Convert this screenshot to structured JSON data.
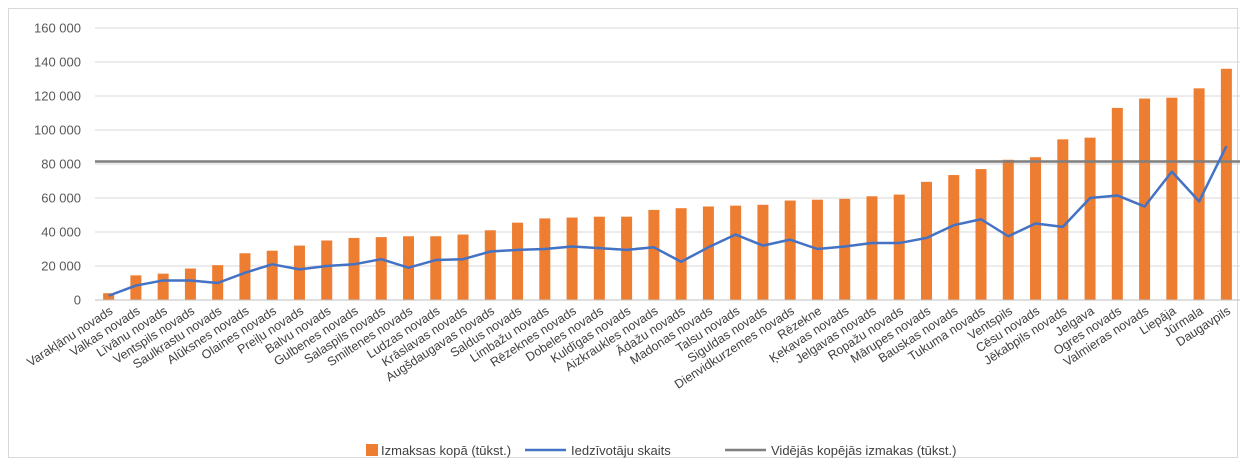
{
  "chart_data": {
    "type": "bar",
    "title": "",
    "xlabel": "",
    "ylabel": "",
    "ylim": [
      0,
      160000
    ],
    "y_ticks": [
      "0",
      "20 000",
      "40 000",
      "60 000",
      "80 000",
      "100 000",
      "120 000",
      "140 000",
      "160 000"
    ],
    "grid": true,
    "legend_position": "bottom",
    "categories": [
      "Varakļānu novads",
      "Valkas novads",
      "Līvānu novads",
      "Ventspils novads",
      "Saulkrastu novads",
      "Alūksnes novads",
      "Olaines novads",
      "Preiļu novads",
      "Balvu novads",
      "Gulbenes novads",
      "Salaspils novads",
      "Smiltenes novads",
      "Ludzas novads",
      "Krāslavas novads",
      "Augšdaugavas novads",
      "Saldus novads",
      "Limbažu novads",
      "Rēzeknes novads",
      "Dobeles novads",
      "Kuldīgas novads",
      "Aizkraukles novads",
      "Ādažu novads",
      "Madonas novads",
      "Talsu novads",
      "Siguldas novads",
      "Dienvidkurzemes novads",
      "Rēzekne",
      "Ķekavas novads",
      "Jelgavas novads",
      "Ropažu novads",
      "Mārupes novads",
      "Bauskas novads",
      "Tukuma novads",
      "Ventspils",
      "Cēsu novads",
      "Jēkabpils novads",
      "Jelgava",
      "Ogres novads",
      "Valmieras novads",
      "Liepāja",
      "Jūrmala",
      "Daugavpils"
    ],
    "series": [
      {
        "name": "Izmaksas kopā (tūkst.)",
        "type": "bar",
        "color": "#ED7D31",
        "values": [
          4000,
          14500,
          15500,
          18500,
          20500,
          27500,
          29000,
          32000,
          35000,
          36500,
          37000,
          37500,
          37500,
          38500,
          41000,
          45500,
          48000,
          48500,
          49000,
          49000,
          53000,
          54000,
          55000,
          55500,
          56000,
          58500,
          59000,
          59500,
          61000,
          62000,
          69500,
          73500,
          77000,
          82500,
          84000,
          94500,
          95500,
          113000,
          118500,
          119000,
          124500,
          136000
        ]
      },
      {
        "name": "Iedzīvotāju skaits",
        "type": "line",
        "color": "#4472C4",
        "values": [
          2500,
          8500,
          11500,
          11500,
          10000,
          16000,
          21000,
          18000,
          20000,
          21000,
          24000,
          19000,
          23500,
          24000,
          28500,
          29500,
          30000,
          31500,
          30500,
          29500,
          31000,
          22500,
          31000,
          38500,
          32000,
          35500,
          30000,
          31500,
          33500,
          33500,
          36500,
          44000,
          47500,
          37500,
          45000,
          43000,
          60000,
          61500,
          55000,
          75500,
          58000,
          90500
        ]
      },
      {
        "name": "Vidējās kopējās izmakas (tūkst.)",
        "type": "line",
        "color": "#7F7F7F",
        "values": [
          81500,
          81500,
          81500,
          81500,
          81500,
          81500,
          81500,
          81500,
          81500,
          81500,
          81500,
          81500,
          81500,
          81500,
          81500,
          81500,
          81500,
          81500,
          81500,
          81500,
          81500,
          81500,
          81500,
          81500,
          81500,
          81500,
          81500,
          81500,
          81500,
          81500,
          81500,
          81500,
          81500,
          81500,
          81500,
          81500,
          81500,
          81500,
          81500,
          81500,
          81500,
          81500
        ]
      }
    ]
  }
}
